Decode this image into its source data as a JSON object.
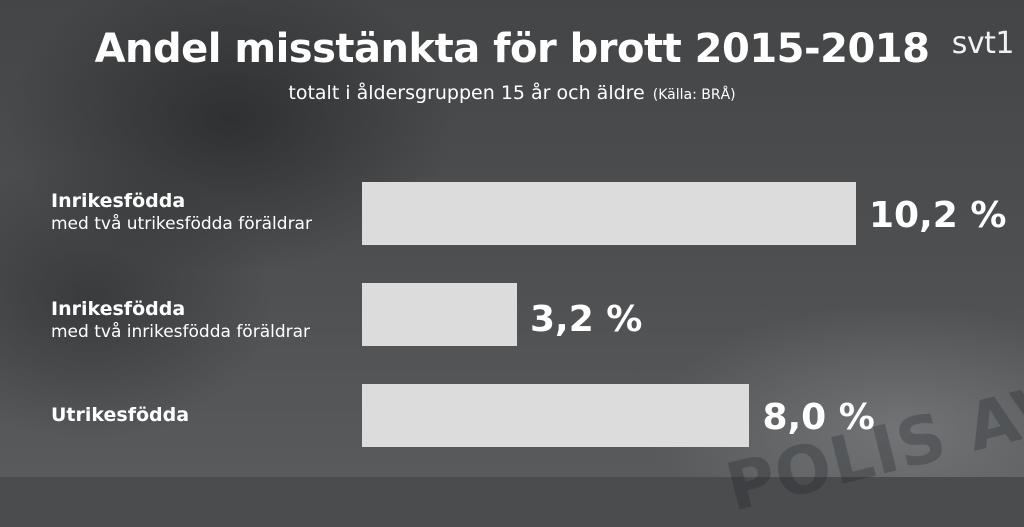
{
  "logo": "svt1",
  "background_text": "POLIS AVSPÄR",
  "colors": {
    "bar": "#dcdcdc",
    "text": "#ffffff",
    "background": "#4a4c4e"
  },
  "chart_data": {
    "type": "bar",
    "orientation": "horizontal",
    "title": "Andel misstänkta för brott 2015-2018",
    "subtitle": "totalt i åldersgruppen 15 år och äldre",
    "source": "(Källa: BRÅ)",
    "categories": [
      {
        "line1": "Inrikesfödda",
        "line2": "med två utrikesfödda föräldrar"
      },
      {
        "line1": "Inrikesfödda",
        "line2": "med två inrikesfödda föräldrar"
      },
      {
        "line1": "Utrikesfödda",
        "line2": ""
      }
    ],
    "values": [
      10.2,
      3.2,
      8.0
    ],
    "value_labels": [
      "10,2 %",
      "3,2 %",
      "8,0 %"
    ],
    "unit": "%",
    "xlim": [
      0,
      10.2
    ],
    "grid": false
  }
}
